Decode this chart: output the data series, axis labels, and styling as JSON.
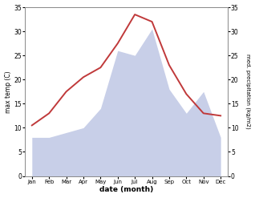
{
  "months": [
    "Jan",
    "Feb",
    "Mar",
    "Apr",
    "May",
    "Jun",
    "Jul",
    "Aug",
    "Sep",
    "Oct",
    "Nov",
    "Dec"
  ],
  "temp": [
    10.5,
    13.0,
    17.5,
    20.5,
    22.5,
    27.5,
    33.5,
    32.0,
    23.0,
    17.0,
    13.0,
    12.5
  ],
  "precip": [
    8.0,
    8.0,
    9.0,
    10.0,
    14.0,
    26.0,
    25.0,
    30.5,
    18.0,
    13.0,
    17.5,
    8.0
  ],
  "temp_color": "#c0393a",
  "precip_fill_color": "#c8cfe8",
  "ylim_left": [
    0,
    35
  ],
  "ylim_right": [
    0,
    35
  ],
  "ylabel_left": "max temp (C)",
  "ylabel_right": "med. precipitation (kg/m2)",
  "xlabel": "date (month)",
  "bg_color": "#ffffff",
  "plot_bg_color": "#f5f5f5",
  "spine_color": "#888888",
  "tick_color": "#333333",
  "yticks": [
    0,
    5,
    10,
    15,
    20,
    25,
    30,
    35
  ]
}
